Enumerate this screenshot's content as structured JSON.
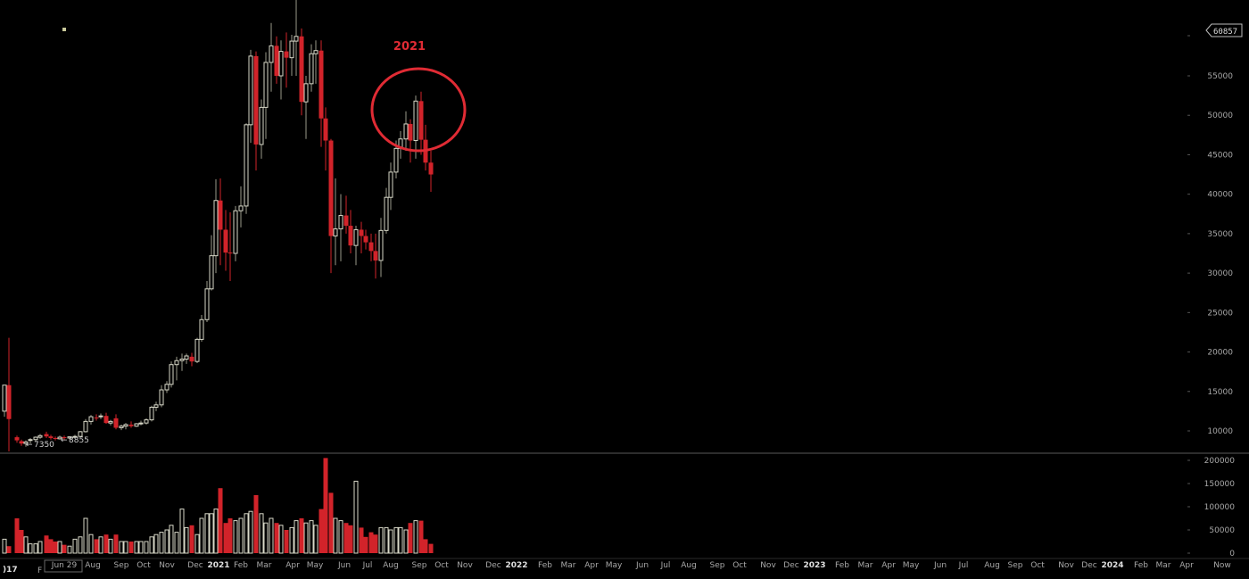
{
  "chart_data": {
    "type": "candlestick",
    "price_axis": {
      "ticks": [
        10000,
        15000,
        20000,
        25000,
        30000,
        35000,
        40000,
        45000,
        50000,
        55000
      ],
      "ylim": [
        7000,
        61000
      ]
    },
    "volume_axis": {
      "ticks": [
        0,
        50000,
        100000,
        150000,
        200000
      ],
      "labels": [
        "0",
        "50000",
        "100000",
        "150000",
        "200000"
      ],
      "ylim": [
        0,
        200000
      ]
    },
    "last_price_tag": "60857",
    "low_marker_label": "7350",
    "low_marker_label_2": "8855",
    "annotation_text": "2021",
    "x_axis_labels": [
      {
        "t": "Jun 29",
        "x": 72
      },
      {
        "t": "Aug",
        "x": 104
      },
      {
        "t": "Sep",
        "x": 136
      },
      {
        "t": "Oct",
        "x": 161
      },
      {
        "t": "Nov",
        "x": 187
      },
      {
        "t": "Dec",
        "x": 219
      },
      {
        "t": "2021",
        "x": 245,
        "year": true
      },
      {
        "t": "Feb",
        "x": 270
      },
      {
        "t": "Mar",
        "x": 296
      },
      {
        "t": "Apr",
        "x": 328
      },
      {
        "t": "May",
        "x": 353
      },
      {
        "t": "Jun",
        "x": 386
      },
      {
        "t": "Jul",
        "x": 412
      },
      {
        "t": "Aug",
        "x": 438
      },
      {
        "t": "Sep",
        "x": 470
      },
      {
        "t": "Oct",
        "x": 495
      },
      {
        "t": "Nov",
        "x": 521
      },
      {
        "t": "Dec",
        "x": 553
      },
      {
        "t": "2022",
        "x": 579,
        "year": true
      },
      {
        "t": "Feb",
        "x": 611
      },
      {
        "t": "Mar",
        "x": 637
      },
      {
        "t": "Apr",
        "x": 663
      },
      {
        "t": "May",
        "x": 688
      },
      {
        "t": "Jun",
        "x": 720
      },
      {
        "t": "Jul",
        "x": 746
      },
      {
        "t": "Aug",
        "x": 772
      },
      {
        "t": "Sep",
        "x": 804
      },
      {
        "t": "Oct",
        "x": 829
      },
      {
        "t": "Nov",
        "x": 861
      },
      {
        "t": "Dec",
        "x": 887
      },
      {
        "t": "2023",
        "x": 913,
        "year": true
      },
      {
        "t": "Feb",
        "x": 944
      },
      {
        "t": "Mar",
        "x": 970
      },
      {
        "t": "Apr",
        "x": 996
      },
      {
        "t": "May",
        "x": 1021
      },
      {
        "t": "Jun",
        "x": 1054
      },
      {
        "t": "Jul",
        "x": 1080
      },
      {
        "t": "Aug",
        "x": 1112
      },
      {
        "t": "Sep",
        "x": 1138
      },
      {
        "t": "Oct",
        "x": 1163
      },
      {
        "t": "Nov",
        "x": 1195
      },
      {
        "t": "Dec",
        "x": 1221
      },
      {
        "t": "2024",
        "x": 1247,
        "year": true
      },
      {
        "t": "Feb",
        "x": 1279
      },
      {
        "t": "Mar",
        "x": 1304
      },
      {
        "t": "Apr",
        "x": 1330
      },
      {
        "t": "Now",
        "x": 1370
      }
    ],
    "candles": [
      {
        "x": 5,
        "o": 12500,
        "h": 15800,
        "l": 11800,
        "c": 15800,
        "v": 30000
      },
      {
        "x": 10,
        "o": 15800,
        "h": 21800,
        "l": 7400,
        "c": 11500,
        "v": 15000
      },
      {
        "x": 19,
        "o": 9200,
        "h": 9400,
        "l": 8500,
        "c": 8800,
        "v": 75000
      },
      {
        "x": 24,
        "o": 8700,
        "h": 8900,
        "l": 8100,
        "c": 8400,
        "v": 50000
      },
      {
        "x": 29,
        "o": 8400,
        "h": 8800,
        "l": 8000,
        "c": 8600,
        "v": 35000
      },
      {
        "x": 34,
        "o": 8800,
        "h": 9100,
        "l": 8400,
        "c": 8900,
        "v": 20000
      },
      {
        "x": 40,
        "o": 8900,
        "h": 9300,
        "l": 8600,
        "c": 9200,
        "v": 20000
      },
      {
        "x": 45,
        "o": 9200,
        "h": 9600,
        "l": 9000,
        "c": 9400,
        "v": 25000
      },
      {
        "x": 52,
        "o": 9600,
        "h": 9900,
        "l": 9100,
        "c": 9300,
        "v": 38000
      },
      {
        "x": 57,
        "o": 9300,
        "h": 9500,
        "l": 8900,
        "c": 9100,
        "v": 30000
      },
      {
        "x": 62,
        "o": 9100,
        "h": 9300,
        "l": 8800,
        "c": 9000,
        "v": 25000
      },
      {
        "x": 67,
        "o": 9000,
        "h": 9400,
        "l": 8900,
        "c": 9200,
        "v": 25000
      },
      {
        "x": 72,
        "o": 9200,
        "h": 9400,
        "l": 8800,
        "c": 9100,
        "v": 18000
      },
      {
        "x": 78,
        "o": 9100,
        "h": 9300,
        "l": 8900,
        "c": 9250,
        "v": 15000
      },
      {
        "x": 84,
        "o": 9250,
        "h": 9500,
        "l": 9100,
        "c": 9300,
        "v": 30000
      },
      {
        "x": 90,
        "o": 9300,
        "h": 10000,
        "l": 9200,
        "c": 9900,
        "v": 35000
      },
      {
        "x": 96,
        "o": 9900,
        "h": 11500,
        "l": 9800,
        "c": 11200,
        "v": 75000
      },
      {
        "x": 102,
        "o": 11200,
        "h": 12000,
        "l": 10800,
        "c": 11800,
        "v": 40000
      },
      {
        "x": 108,
        "o": 11700,
        "h": 12100,
        "l": 11300,
        "c": 11600,
        "v": 30000
      },
      {
        "x": 113,
        "o": 11800,
        "h": 12200,
        "l": 11500,
        "c": 11900,
        "v": 35000
      },
      {
        "x": 119,
        "o": 11900,
        "h": 12300,
        "l": 10900,
        "c": 11000,
        "v": 40000
      },
      {
        "x": 124,
        "o": 11000,
        "h": 11400,
        "l": 10700,
        "c": 11200,
        "v": 30000
      },
      {
        "x": 130,
        "o": 11600,
        "h": 12100,
        "l": 10200,
        "c": 10400,
        "v": 40000
      },
      {
        "x": 136,
        "o": 10400,
        "h": 10800,
        "l": 10100,
        "c": 10600,
        "v": 25000
      },
      {
        "x": 141,
        "o": 10600,
        "h": 11000,
        "l": 10200,
        "c": 10800,
        "v": 25000
      },
      {
        "x": 147,
        "o": 10800,
        "h": 11200,
        "l": 10400,
        "c": 10600,
        "v": 25000
      },
      {
        "x": 153,
        "o": 10600,
        "h": 11000,
        "l": 10500,
        "c": 10900,
        "v": 25000
      },
      {
        "x": 158,
        "o": 10900,
        "h": 11300,
        "l": 10700,
        "c": 11000,
        "v": 25000
      },
      {
        "x": 164,
        "o": 11000,
        "h": 11600,
        "l": 10800,
        "c": 11400,
        "v": 25000
      },
      {
        "x": 170,
        "o": 11400,
        "h": 13200,
        "l": 11200,
        "c": 13000,
        "v": 35000
      },
      {
        "x": 175,
        "o": 13000,
        "h": 13700,
        "l": 12500,
        "c": 13300,
        "v": 40000
      },
      {
        "x": 181,
        "o": 13300,
        "h": 15800,
        "l": 13000,
        "c": 15200,
        "v": 45000
      },
      {
        "x": 187,
        "o": 15200,
        "h": 16300,
        "l": 14800,
        "c": 15900,
        "v": 50000
      },
      {
        "x": 192,
        "o": 15900,
        "h": 18800,
        "l": 15500,
        "c": 18400,
        "v": 60000
      },
      {
        "x": 198,
        "o": 18400,
        "h": 19400,
        "l": 16400,
        "c": 18900,
        "v": 45000
      },
      {
        "x": 204,
        "o": 18900,
        "h": 19800,
        "l": 17600,
        "c": 19100,
        "v": 95000
      },
      {
        "x": 209,
        "o": 19100,
        "h": 19800,
        "l": 18500,
        "c": 19500,
        "v": 55000
      },
      {
        "x": 215,
        "o": 19400,
        "h": 19900,
        "l": 18200,
        "c": 18800,
        "v": 60000
      },
      {
        "x": 221,
        "o": 18800,
        "h": 21800,
        "l": 18600,
        "c": 21600,
        "v": 40000
      },
      {
        "x": 226,
        "o": 21600,
        "h": 24700,
        "l": 21300,
        "c": 24100,
        "v": 75000
      },
      {
        "x": 232,
        "o": 24100,
        "h": 29000,
        "l": 23800,
        "c": 28000,
        "v": 85000
      },
      {
        "x": 237,
        "o": 28000,
        "h": 34800,
        "l": 27800,
        "c": 32200,
        "v": 85000
      },
      {
        "x": 242,
        "o": 32200,
        "h": 41900,
        "l": 30000,
        "c": 39200,
        "v": 95000
      },
      {
        "x": 247,
        "o": 39200,
        "h": 42000,
        "l": 31000,
        "c": 35500,
        "v": 140000
      },
      {
        "x": 253,
        "o": 35500,
        "h": 38000,
        "l": 30300,
        "c": 32600,
        "v": 65000
      },
      {
        "x": 258,
        "o": 32600,
        "h": 37700,
        "l": 29000,
        "c": 32500,
        "v": 75000
      },
      {
        "x": 264,
        "o": 32500,
        "h": 38500,
        "l": 31500,
        "c": 37900,
        "v": 70000
      },
      {
        "x": 270,
        "o": 37900,
        "h": 41000,
        "l": 35800,
        "c": 38500,
        "v": 75000
      },
      {
        "x": 276,
        "o": 38500,
        "h": 49000,
        "l": 37500,
        "c": 48800,
        "v": 85000
      },
      {
        "x": 281,
        "o": 48800,
        "h": 58300,
        "l": 46500,
        "c": 57500,
        "v": 90000
      },
      {
        "x": 287,
        "o": 57500,
        "h": 58100,
        "l": 43000,
        "c": 46300,
        "v": 125000
      },
      {
        "x": 293,
        "o": 46300,
        "h": 52000,
        "l": 44500,
        "c": 51000,
        "v": 85000
      },
      {
        "x": 298,
        "o": 51000,
        "h": 58000,
        "l": 47000,
        "c": 56700,
        "v": 65000
      },
      {
        "x": 304,
        "o": 56700,
        "h": 61700,
        "l": 53000,
        "c": 58800,
        "v": 75000
      },
      {
        "x": 310,
        "o": 58800,
        "h": 60000,
        "l": 54000,
        "c": 55000,
        "v": 65000
      },
      {
        "x": 315,
        "o": 55000,
        "h": 59500,
        "l": 52000,
        "c": 58100,
        "v": 60000
      },
      {
        "x": 321,
        "o": 58100,
        "h": 60500,
        "l": 53500,
        "c": 57300,
        "v": 50000
      },
      {
        "x": 327,
        "o": 57300,
        "h": 60200,
        "l": 55000,
        "c": 59400,
        "v": 55000
      },
      {
        "x": 332,
        "o": 59400,
        "h": 64800,
        "l": 55000,
        "c": 60000,
        "v": 70000
      },
      {
        "x": 338,
        "o": 60000,
        "h": 61000,
        "l": 50000,
        "c": 51700,
        "v": 75000
      },
      {
        "x": 343,
        "o": 51700,
        "h": 55000,
        "l": 47000,
        "c": 54000,
        "v": 65000
      },
      {
        "x": 349,
        "o": 54000,
        "h": 59000,
        "l": 53000,
        "c": 57800,
        "v": 70000
      },
      {
        "x": 354,
        "o": 57800,
        "h": 59500,
        "l": 54000,
        "c": 58200,
        "v": 60000
      },
      {
        "x": 360,
        "o": 58200,
        "h": 59500,
        "l": 46000,
        "c": 49600,
        "v": 95000
      },
      {
        "x": 365,
        "o": 49600,
        "h": 51000,
        "l": 43000,
        "c": 46800,
        "v": 205000
      },
      {
        "x": 371,
        "o": 46800,
        "h": 47000,
        "l": 30000,
        "c": 34700,
        "v": 130000
      },
      {
        "x": 376,
        "o": 34700,
        "h": 42000,
        "l": 31000,
        "c": 35600,
        "v": 75000
      },
      {
        "x": 382,
        "o": 35600,
        "h": 40000,
        "l": 31500,
        "c": 37300,
        "v": 70000
      },
      {
        "x": 388,
        "o": 37300,
        "h": 39800,
        "l": 35000,
        "c": 36000,
        "v": 65000
      },
      {
        "x": 393,
        "o": 36000,
        "h": 38000,
        "l": 32500,
        "c": 33500,
        "v": 60000
      },
      {
        "x": 399,
        "o": 33500,
        "h": 36000,
        "l": 31000,
        "c": 35500,
        "v": 155000
      },
      {
        "x": 405,
        "o": 35500,
        "h": 36500,
        "l": 32500,
        "c": 34700,
        "v": 55000
      },
      {
        "x": 410,
        "o": 34700,
        "h": 35500,
        "l": 33000,
        "c": 33900,
        "v": 35000
      },
      {
        "x": 416,
        "o": 33900,
        "h": 35000,
        "l": 31500,
        "c": 32800,
        "v": 45000
      },
      {
        "x": 421,
        "o": 32800,
        "h": 35000,
        "l": 29300,
        "c": 31600,
        "v": 40000
      },
      {
        "x": 427,
        "o": 31600,
        "h": 37000,
        "l": 29500,
        "c": 35400,
        "v": 55000
      },
      {
        "x": 433,
        "o": 35400,
        "h": 40800,
        "l": 35000,
        "c": 39600,
        "v": 55000
      },
      {
        "x": 438,
        "o": 39600,
        "h": 44000,
        "l": 38000,
        "c": 42800,
        "v": 50000
      },
      {
        "x": 444,
        "o": 42800,
        "h": 46800,
        "l": 42000,
        "c": 45800,
        "v": 55000
      },
      {
        "x": 449,
        "o": 45800,
        "h": 48000,
        "l": 44500,
        "c": 47000,
        "v": 55000
      },
      {
        "x": 455,
        "o": 47000,
        "h": 50500,
        "l": 45500,
        "c": 48900,
        "v": 50000
      },
      {
        "x": 460,
        "o": 48900,
        "h": 49500,
        "l": 44000,
        "c": 46800,
        "v": 65000
      },
      {
        "x": 466,
        "o": 46800,
        "h": 52500,
        "l": 44500,
        "c": 51800,
        "v": 70000
      },
      {
        "x": 472,
        "o": 51800,
        "h": 53000,
        "l": 45000,
        "c": 46900,
        "v": 70000
      },
      {
        "x": 477,
        "o": 46900,
        "h": 48800,
        "l": 43000,
        "c": 44000,
        "v": 30000
      },
      {
        "x": 483,
        "o": 44000,
        "h": 45500,
        "l": 40300,
        "c": 42500,
        "v": 20000
      }
    ]
  }
}
